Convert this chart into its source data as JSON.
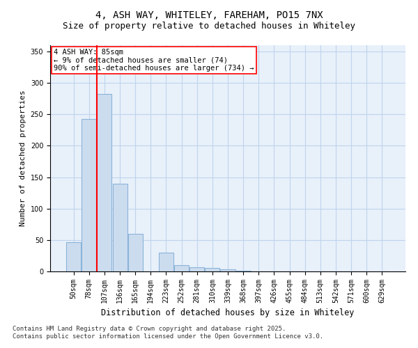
{
  "title1": "4, ASH WAY, WHITELEY, FAREHAM, PO15 7NX",
  "title2": "Size of property relative to detached houses in Whiteley",
  "xlabel": "Distribution of detached houses by size in Whiteley",
  "ylabel": "Number of detached properties",
  "bar_labels": [
    "50sqm",
    "78sqm",
    "107sqm",
    "136sqm",
    "165sqm",
    "194sqm",
    "223sqm",
    "252sqm",
    "281sqm",
    "310sqm",
    "339sqm",
    "368sqm",
    "397sqm",
    "426sqm",
    "455sqm",
    "484sqm",
    "513sqm",
    "542sqm",
    "571sqm",
    "600sqm",
    "629sqm"
  ],
  "bar_values": [
    46,
    243,
    283,
    140,
    60,
    0,
    30,
    10,
    7,
    5,
    3,
    1,
    0,
    0,
    0,
    0,
    0,
    0,
    0,
    0,
    0
  ],
  "bar_color": "#ccdcef",
  "bar_edge_color": "#8ab4d8",
  "grid_color": "#c0d4ec",
  "bg_color": "#e8f0fa",
  "vline_x": 1.5,
  "vline_color": "red",
  "annotation_text": "4 ASH WAY: 85sqm\n← 9% of detached houses are smaller (74)\n90% of semi-detached houses are larger (734) →",
  "annotation_box_color": "white",
  "annotation_border_color": "red",
  "footnote": "Contains HM Land Registry data © Crown copyright and database right 2025.\nContains public sector information licensed under the Open Government Licence v3.0.",
  "ylim": [
    0,
    360
  ],
  "yticks": [
    0,
    50,
    100,
    150,
    200,
    250,
    300,
    350
  ],
  "title1_fontsize": 10,
  "title2_fontsize": 9,
  "xlabel_fontsize": 8.5,
  "ylabel_fontsize": 8,
  "tick_fontsize": 7,
  "annotation_fontsize": 7.5,
  "footnote_fontsize": 6.5
}
